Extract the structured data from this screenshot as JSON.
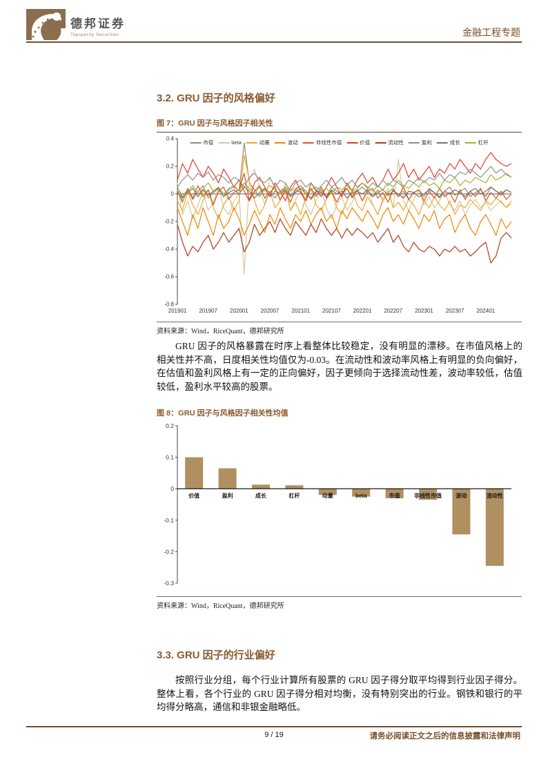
{
  "header": {
    "brand_cn": "德邦证券",
    "brand_en": "Topsperity Securities",
    "doc_type": "金融工程专题"
  },
  "sections": {
    "s32_title": "3.2. GRU 因子的风格偏好",
    "s32_para": "GRU 因子的风格暴露在时序上看整体比较稳定，没有明显的漂移。在市值风格上的相关性并不高，日度相关性均值仅为-0.03。在流动性和波动率风格上有明显的负向偏好，在估值和盈利风格上有一定的正向偏好，因子更倾向于选择流动性差，波动率较低，估值较低，盈利水平较高的股票。",
    "s33_title": "3.3. GRU 因子的行业偏好",
    "s33_para": "按照行业分组，每个行业计算所有股票的 GRU 因子得分取平均得到行业因子得分。整体上看，各个行业的 GRU 因子得分相对均衡，没有特别突出的行业。钢铁和银行的平均得分略高，通信和非银金融略低。"
  },
  "figure7": {
    "caption": "图 7：GRU 因子与风格因子相关性",
    "source": "资料来源：Wind，RiceQuant，德邦研究所"
  },
  "figure8": {
    "caption": "图 8：GRU 因子与风格因子相关性均值",
    "source": "资料来源：Wind，RiceQuant，德邦研究所"
  },
  "footer": {
    "page_number": "9 / 19",
    "disclaimer": "请务必阅读正文之后的信息披露和法律声明"
  },
  "colors": {
    "brand_brown": "#8a5a2e",
    "rule_brown": "#6f4f2f",
    "bar_brown": "#b08f60"
  },
  "chart_data": [
    {
      "type": "line",
      "title": "GRU 因子与风格因子相关性",
      "x_tick_labels": [
        "201901",
        "201907",
        "202001",
        "202007",
        "202101",
        "202107",
        "202201",
        "202207",
        "202301",
        "202307",
        "202401"
      ],
      "x_tick_indices": [
        0,
        6,
        12,
        18,
        24,
        30,
        36,
        42,
        48,
        54,
        60
      ],
      "n_points": 66,
      "ylim": [
        -0.8,
        0.4
      ],
      "yticks": [
        0.4,
        0.2,
        0,
        -0.2,
        -0.4,
        -0.6,
        -0.8
      ],
      "grid": false,
      "legend_position": "top",
      "series": [
        {
          "name": "市值",
          "color": "#9a8574",
          "values": [
            0.05,
            -0.02,
            0.03,
            -0.04,
            0.02,
            0.06,
            -0.03,
            0.01,
            0.04,
            -0.02,
            0.03,
            0.05,
            0.02,
            0.37,
            0.08,
            0.03,
            -0.02,
            0.04,
            0.01,
            -0.03,
            0.02,
            0.05,
            -0.01,
            0.03,
            0.06,
            0.02,
            -0.04,
            0.01,
            0.03,
            -0.02,
            0.05,
            0.02,
            -0.01,
            0.04,
            -0.03,
            0.02,
            0.05,
            0.01,
            -0.02,
            0.03,
            -0.05,
            0.01,
            0.04,
            -0.02,
            0.02,
            -0.04,
            0.01,
            0.03,
            -0.02,
            0.04,
            0.01,
            -0.03,
            0.02,
            0.05,
            -0.01,
            0.02,
            0.04,
            -0.02,
            0.01,
            0.03,
            -0.02,
            0.05,
            0.02,
            -0.01,
            0.03,
            0.01
          ]
        },
        {
          "name": "beta",
          "color": "#d8c79e",
          "values": [
            0.08,
            -0.15,
            -0.05,
            -0.18,
            -0.08,
            0.02,
            -0.12,
            -0.06,
            0.04,
            -0.1,
            -0.15,
            -0.05,
            0.0,
            -0.58,
            0.1,
            0.18,
            0.05,
            -0.08,
            0.12,
            0.04,
            -0.05,
            0.08,
            -0.12,
            -0.04,
            0.02,
            -0.08,
            -0.15,
            -0.05,
            0.03,
            -0.1,
            -0.18,
            -0.08,
            -0.02,
            -0.12,
            -0.06,
            0.02,
            -0.05,
            0.05,
            -0.08,
            -0.15,
            -0.03,
            0.04,
            -0.1,
            0.25,
            -0.05,
            -0.12,
            -0.04,
            0.03,
            -0.08,
            -0.02,
            -0.1,
            -0.05,
            0.02,
            -0.08,
            -0.12,
            -0.05,
            -0.15,
            -0.08,
            -0.04,
            -0.1,
            -0.06,
            -0.12,
            -0.08,
            -0.05,
            -0.1,
            -0.07
          ]
        },
        {
          "name": "动量",
          "color": "#efa72f",
          "values": [
            -0.05,
            -0.12,
            0.02,
            -0.08,
            -0.15,
            -0.05,
            0.03,
            -0.1,
            -0.18,
            -0.08,
            -0.02,
            -0.12,
            -0.05,
            0.28,
            0.1,
            -0.05,
            -0.15,
            -0.08,
            0.02,
            -0.1,
            -0.05,
            0.05,
            -0.12,
            -0.06,
            -0.15,
            -0.02,
            0.04,
            -0.08,
            -0.12,
            -0.04,
            0.02,
            -0.1,
            -0.15,
            -0.05,
            0.03,
            -0.08,
            -0.12,
            -0.02,
            -0.08,
            -0.15,
            -0.05,
            0.02,
            -0.1,
            -0.06,
            -0.12,
            -0.04,
            -0.08,
            -0.15,
            -0.05,
            -0.1,
            -0.02,
            -0.08,
            -0.12,
            -0.05,
            -0.15,
            -0.08,
            -0.1,
            -0.04,
            -0.08,
            -0.12,
            -0.05,
            -0.08,
            -0.03,
            -0.06,
            -0.1,
            -0.05
          ]
        },
        {
          "name": "波动",
          "color": "#f08300",
          "values": [
            -0.1,
            -0.2,
            -0.3,
            -0.15,
            -0.25,
            -0.1,
            -0.2,
            -0.3,
            -0.15,
            -0.25,
            -0.2,
            -0.1,
            -0.18,
            -0.3,
            -0.22,
            -0.12,
            -0.2,
            -0.28,
            -0.15,
            -0.22,
            -0.1,
            -0.18,
            -0.25,
            -0.15,
            -0.2,
            -0.12,
            -0.22,
            -0.15,
            -0.1,
            -0.2,
            -0.15,
            -0.25,
            -0.12,
            -0.18,
            -0.1,
            -0.15,
            -0.2,
            -0.12,
            -0.18,
            -0.25,
            -0.15,
            -0.1,
            -0.2,
            -0.15,
            -0.22,
            -0.12,
            -0.18,
            -0.25,
            -0.15,
            -0.2,
            -0.12,
            -0.25,
            -0.18,
            -0.15,
            -0.28,
            -0.2,
            -0.15,
            -0.25,
            -0.3,
            -0.2,
            -0.15,
            -0.22,
            -0.3,
            -0.18,
            -0.25,
            -0.2
          ]
        },
        {
          "name": "非线性市值",
          "color": "#d4561e",
          "values": [
            0.02,
            -0.06,
            0.04,
            -0.03,
            0.06,
            -0.02,
            0.03,
            -0.08,
            0.02,
            0.05,
            -0.04,
            0.01,
            0.03,
            0.15,
            -0.05,
            0.02,
            0.06,
            -0.03,
            0.01,
            0.05,
            -0.04,
            0.02,
            -0.06,
            0.03,
            0.01,
            -0.05,
            0.04,
            -0.02,
            0.05,
            -0.03,
            0.02,
            -0.06,
            0.01,
            0.04,
            -0.02,
            0.03,
            -0.05,
            0.02,
            0.04,
            -0.03,
            0.01,
            -0.06,
            0.03,
            -0.02,
            0.05,
            -0.04,
            0.01,
            0.03,
            -0.05,
            0.02,
            -0.03,
            0.04,
            -0.02,
            0.01,
            -0.06,
            0.03,
            -0.04,
            0.02,
            -0.02,
            0.04,
            -0.05,
            0.01,
            -0.03,
            0.02,
            -0.04,
            0.0
          ]
        },
        {
          "name": "价值",
          "color": "#e6392b",
          "values": [
            0.1,
            0.22,
            0.15,
            0.25,
            0.18,
            0.12,
            0.2,
            0.15,
            0.08,
            0.18,
            0.12,
            0.05,
            0.1,
            0.02,
            -0.05,
            0.08,
            0.12,
            0.05,
            -0.02,
            0.08,
            0.02,
            -0.05,
            0.05,
            0.1,
            0.02,
            -0.05,
            0.08,
            0.03,
            -0.02,
            0.05,
            0.12,
            0.05,
            -0.02,
            0.08,
            0.02,
            0.1,
            0.15,
            0.08,
            0.12,
            0.05,
            0.1,
            0.18,
            0.1,
            0.15,
            0.22,
            0.12,
            0.18,
            0.1,
            0.15,
            0.2,
            0.12,
            0.18,
            0.15,
            0.22,
            0.18,
            0.25,
            0.2,
            0.15,
            0.22,
            0.18,
            0.25,
            0.3,
            0.25,
            0.22,
            0.2,
            0.22
          ]
        },
        {
          "name": "流动性",
          "color": "#b03a17",
          "values": [
            -0.22,
            -0.35,
            -0.45,
            -0.38,
            -0.42,
            -0.35,
            -0.3,
            -0.4,
            -0.35,
            -0.28,
            -0.35,
            -0.3,
            -0.25,
            -0.42,
            -0.35,
            -0.22,
            -0.3,
            -0.25,
            -0.2,
            -0.28,
            -0.18,
            -0.25,
            -0.3,
            -0.2,
            -0.25,
            -0.3,
            -0.22,
            -0.28,
            -0.18,
            -0.25,
            -0.3,
            -0.25,
            -0.32,
            -0.25,
            -0.3,
            -0.25,
            -0.28,
            -0.32,
            -0.28,
            -0.35,
            -0.3,
            -0.25,
            -0.35,
            -0.3,
            -0.38,
            -0.42,
            -0.35,
            -0.4,
            -0.42,
            -0.38,
            -0.4,
            -0.45,
            -0.4,
            -0.42,
            -0.38,
            -0.42,
            -0.4,
            -0.45,
            -0.42,
            -0.38,
            -0.35,
            -0.5,
            -0.45,
            -0.32,
            -0.28,
            -0.32
          ]
        },
        {
          "name": "盈利",
          "color": "#8e8e8e",
          "values": [
            0.05,
            0.1,
            0.14,
            0.1,
            0.15,
            0.12,
            0.16,
            0.1,
            0.14,
            0.12,
            0.08,
            0.12,
            0.1,
            0.05,
            0.12,
            0.15,
            0.1,
            0.08,
            0.12,
            0.05,
            0.1,
            0.08,
            0.02,
            0.08,
            0.1,
            0.05,
            0.08,
            0.02,
            0.06,
            0.1,
            0.05,
            0.08,
            0.12,
            0.06,
            0.1,
            0.05,
            0.08,
            0.04,
            0.08,
            0.05,
            0.1,
            0.06,
            0.1,
            0.08,
            0.05,
            0.1,
            0.08,
            0.12,
            0.08,
            0.12,
            0.1,
            0.15,
            0.1,
            0.14,
            0.12,
            0.16,
            0.14,
            0.18,
            0.15,
            0.12,
            0.16,
            0.2,
            0.15,
            0.18,
            0.14,
            0.12
          ]
        },
        {
          "name": "成长",
          "color": "#7d6e5d",
          "values": [
            0.02,
            -0.03,
            0.01,
            0.04,
            -0.02,
            0.03,
            -0.01,
            0.02,
            0.04,
            -0.02,
            0.01,
            0.03,
            0.0,
            0.05,
            0.02,
            -0.03,
            0.01,
            0.04,
            -0.02,
            0.02,
            0.0,
            0.03,
            -0.02,
            0.01,
            0.04,
            0.0,
            -0.03,
            0.02,
            0.01,
            -0.02,
            0.03,
            0.0,
            0.02,
            -0.03,
            0.01,
            0.02,
            0.0,
            0.03,
            -0.02,
            0.01,
            0.03,
            -0.01,
            0.02,
            0.0,
            -0.03,
            0.02,
            0.01,
            -0.02,
            0.0,
            0.03,
            0.01,
            -0.02,
            0.02,
            0.0,
            0.03,
            0.01,
            -0.02,
            0.02,
            0.04,
            0.0,
            0.02,
            0.05,
            0.02,
            0.0,
            0.03,
            0.01
          ]
        },
        {
          "name": "杠杆",
          "color": "#a2b12c",
          "values": [
            0.03,
            -0.05,
            0.02,
            0.06,
            0.0,
            0.04,
            0.08,
            0.02,
            0.05,
            0.0,
            0.04,
            0.06,
            0.02,
            0.08,
            0.04,
            0.0,
            0.05,
            0.02,
            0.06,
            0.03,
            0.0,
            0.05,
            0.02,
            0.04,
            0.06,
            0.0,
            0.03,
            0.05,
            0.02,
            0.04,
            0.0,
            0.05,
            0.03,
            0.06,
            0.02,
            0.04,
            0.08,
            0.05,
            0.02,
            0.06,
            0.03,
            0.08,
            0.05,
            0.1,
            0.06,
            0.04,
            0.08,
            0.05,
            0.1,
            0.06,
            0.08,
            0.04,
            0.1,
            0.08,
            0.12,
            0.06,
            0.1,
            0.08,
            0.12,
            0.1,
            0.08,
            0.14,
            0.1,
            0.12,
            0.15,
            0.12
          ]
        }
      ]
    },
    {
      "type": "bar",
      "title": "GRU 因子与风格因子相关性均值",
      "categories": [
        "价值",
        "盈利",
        "成长",
        "杠杆",
        "动量",
        "beta",
        "市值",
        "非线性市值",
        "波动",
        "流动性"
      ],
      "values": [
        0.1,
        0.065,
        0.013,
        0.011,
        -0.02,
        -0.025,
        -0.03,
        -0.035,
        -0.145,
        -0.245
      ],
      "bar_color": "#b08f60",
      "ylim": [
        -0.3,
        0.2
      ],
      "yticks": [
        0.2,
        0.1,
        0,
        -0.1,
        -0.2,
        -0.3
      ],
      "grid": false
    }
  ]
}
